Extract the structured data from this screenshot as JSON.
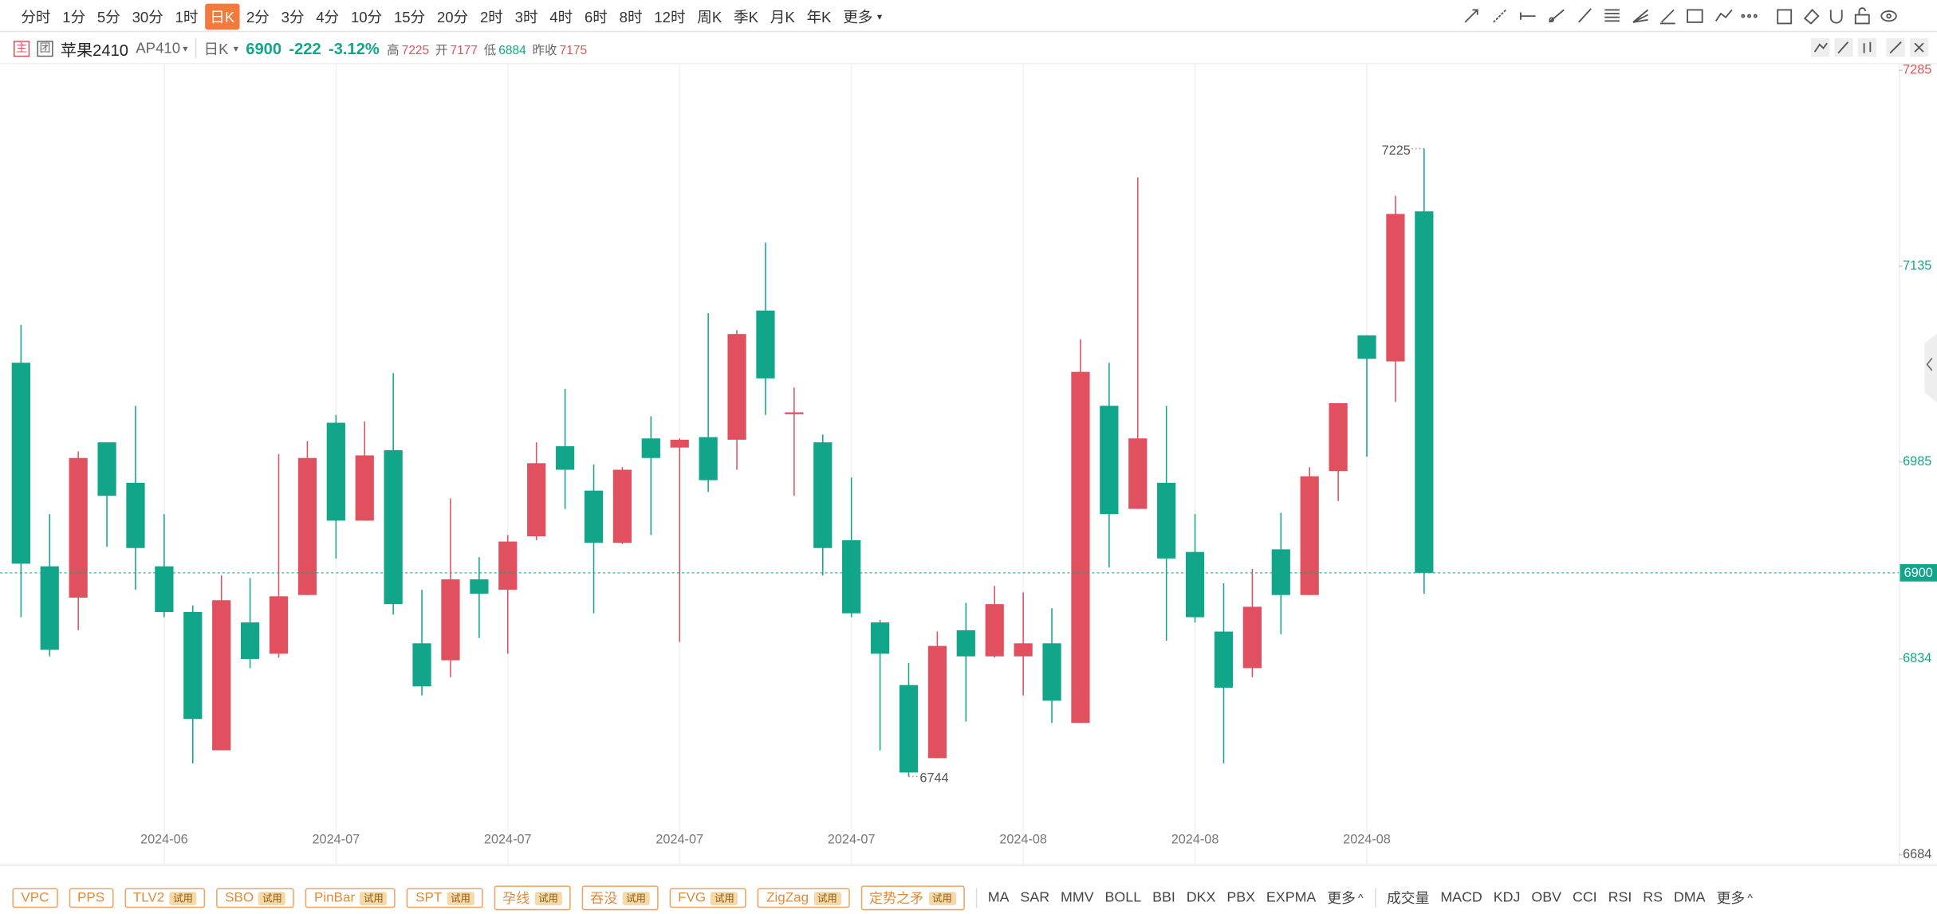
{
  "toolbar": {
    "periods": [
      "分时",
      "1分",
      "5分",
      "30分",
      "1时",
      "日K",
      "2分",
      "3分",
      "4分",
      "10分",
      "15分",
      "20分",
      "2时",
      "3时",
      "4时",
      "6时",
      "8时",
      "12时",
      "周K",
      "季K",
      "月K",
      "年K",
      "更多"
    ],
    "active_period": "日K"
  },
  "symbol": {
    "name": "苹果2410",
    "code": "AP410",
    "period": "日K",
    "price": "6900",
    "change": "-222",
    "change_pct": "-3.12%",
    "stats": [
      {
        "label": "高",
        "value": "7225"
      },
      {
        "label": "开",
        "value": "7177"
      },
      {
        "label": "低",
        "value": "6884"
      },
      {
        "label": "昨收",
        "value": "7175"
      }
    ]
  },
  "chart_data": {
    "type": "candlestick",
    "categories": [
      null,
      null,
      null,
      null,
      null,
      "2024-06",
      null,
      null,
      null,
      null,
      null,
      "2024-07",
      null,
      null,
      null,
      null,
      null,
      "2024-07",
      null,
      null,
      null,
      null,
      null,
      "2024-07",
      null,
      null,
      null,
      null,
      null,
      "2024-07",
      null,
      null,
      null,
      null,
      null,
      "2024-08",
      null,
      null,
      null,
      null,
      null,
      "2024-08",
      null,
      null,
      null,
      null,
      null,
      "2024-08",
      null,
      null
    ],
    "open": [
      7061,
      6905,
      6881,
      7000,
      6969,
      6905,
      6870,
      6764,
      6862,
      6838,
      6883,
      7015,
      6940,
      6994,
      6846,
      6833,
      6895,
      6887,
      6928,
      6997,
      6963,
      6923,
      7003,
      6996,
      7004,
      7002,
      7101,
      7022,
      7000,
      6925,
      6862,
      6814,
      6758,
      6856,
      6836,
      6836,
      6846,
      6785,
      7028,
      6949,
      6969,
      6916,
      6855,
      6827,
      6918,
      6883,
      6978,
      7082,
      7062,
      7177
    ],
    "high": [
      7090,
      6945,
      6993,
      7000,
      7028,
      6945,
      6875,
      6898,
      6896,
      6991,
      7001,
      7021,
      7016,
      7053,
      6887,
      6957,
      6912,
      6929,
      7000,
      7041,
      6983,
      6981,
      7020,
      7003,
      7099,
      7086,
      7153,
      7042,
      7006,
      6973,
      6864,
      6831,
      6855,
      6877,
      6890,
      6885,
      6873,
      7079,
      7061,
      7203,
      7028,
      6945,
      6892,
      6903,
      6946,
      6981,
      7030,
      7082,
      7189,
      7225
    ],
    "low": [
      6866,
      6836,
      6856,
      6920,
      6887,
      6866,
      6754,
      6764,
      6827,
      6835,
      6883,
      6911,
      6940,
      6868,
      6806,
      6820,
      6850,
      6838,
      6925,
      6949,
      6869,
      6922,
      6929,
      6847,
      6962,
      6979,
      7021,
      6959,
      6898,
      6866,
      6764,
      6744,
      6758,
      6786,
      6835,
      6806,
      6785,
      6785,
      6904,
      6949,
      6848,
      6862,
      6754,
      6820,
      6853,
      6883,
      6955,
      6989,
      7031,
      6884
    ],
    "close": [
      6907,
      6841,
      6988,
      6959,
      6919,
      6870,
      6788,
      6879,
      6834,
      6882,
      6988,
      6940,
      6990,
      6876,
      6813,
      6895,
      6884,
      6924,
      6984,
      6979,
      6923,
      6979,
      6988,
      7002,
      6971,
      7083,
      7049,
      7023,
      6919,
      6869,
      6838,
      6747,
      6844,
      6836,
      6876,
      6846,
      6802,
      7054,
      6945,
      7003,
      6911,
      6866,
      6812,
      6874,
      6883,
      6974,
      7030,
      7064,
      7175,
      6900
    ],
    "up_color": "#e0505e",
    "down_color": "#11a68a",
    "ylim": [
      6684,
      7285
    ],
    "yticks": [
      6684,
      6834,
      6985,
      7135,
      7285
    ],
    "last_price": 6900,
    "grid": true
  },
  "indicators": {
    "tags": [
      {
        "name": "VPC"
      },
      {
        "name": "PPS"
      },
      {
        "name": "TLV2",
        "badge": "试用"
      },
      {
        "name": "SBO",
        "badge": "试用"
      },
      {
        "name": "PinBar",
        "badge": "试用"
      },
      {
        "name": "SPT",
        "badge": "试用"
      },
      {
        "name": "孕线",
        "badge": "试用"
      },
      {
        "name": "吞没",
        "badge": "试用"
      },
      {
        "name": "FVG",
        "badge": "试用"
      },
      {
        "name": "ZigZag",
        "badge": "试用"
      },
      {
        "name": "定势之矛",
        "badge": "试用"
      }
    ],
    "main": [
      "MA",
      "SAR",
      "MMV",
      "BOLL",
      "BBI",
      "DKX",
      "PBX",
      "EXPMA",
      "更多"
    ],
    "sub": [
      "成交量",
      "MACD",
      "KDJ",
      "OBV",
      "CCI",
      "RSI",
      "RS",
      "DMA",
      "更多"
    ]
  }
}
